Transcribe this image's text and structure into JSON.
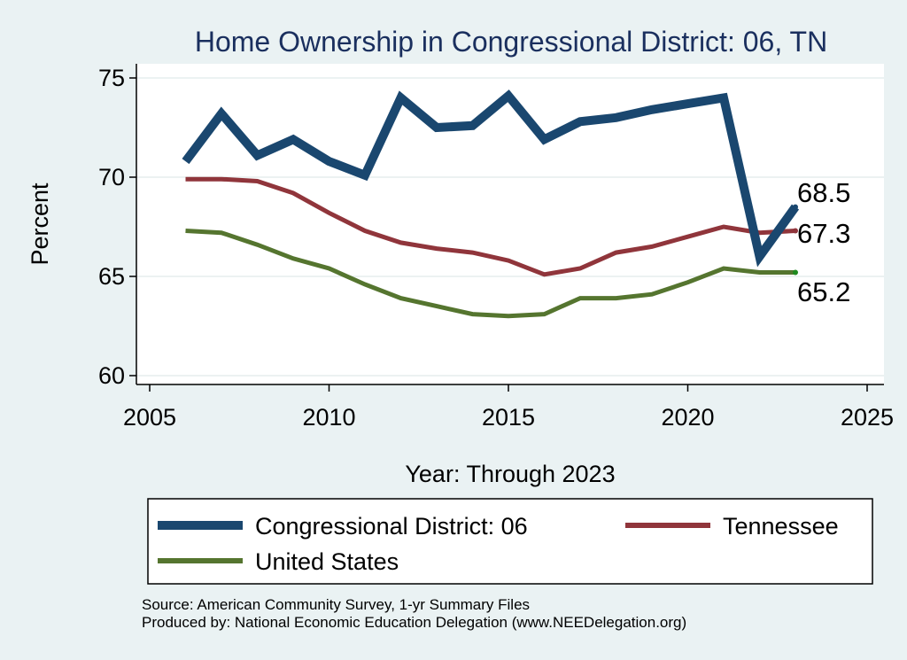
{
  "chart_data": {
    "type": "line",
    "title": "Home Ownership in Congressional District:  06, TN",
    "xlabel": "Year: Through 2023",
    "ylabel": "Percent",
    "xlim": [
      2005,
      2025
    ],
    "ylim": [
      60,
      75
    ],
    "x_ticks": [
      "2005",
      "2010",
      "2015",
      "2020",
      "2025"
    ],
    "y_ticks": [
      "60",
      "65",
      "70",
      "75"
    ],
    "grid": true,
    "legend_position": "bottom",
    "x": [
      2006,
      2007,
      2008,
      2009,
      2010,
      2011,
      2012,
      2013,
      2014,
      2015,
      2016,
      2017,
      2018,
      2019,
      2020,
      2021,
      2022,
      2023
    ],
    "series": [
      {
        "name": "Congressional District:  06",
        "color": "#1a476f",
        "values": [
          70.8,
          73.2,
          71.1,
          71.9,
          70.8,
          70.1,
          74.0,
          72.5,
          72.6,
          74.1,
          71.9,
          72.8,
          73.0,
          73.4,
          73.7,
          74.0,
          66.0,
          68.5
        ],
        "end_label": "68.5"
      },
      {
        "name": "Tennessee",
        "color": "#90353b",
        "values": [
          69.9,
          69.9,
          69.8,
          69.2,
          68.2,
          67.3,
          66.7,
          66.4,
          66.2,
          65.8,
          65.1,
          65.4,
          66.2,
          66.5,
          67.0,
          67.5,
          67.2,
          67.3
        ],
        "end_label": "67.3"
      },
      {
        "name": "United States",
        "color": "#55752f",
        "values": [
          67.3,
          67.2,
          66.6,
          65.9,
          65.4,
          64.6,
          63.9,
          63.5,
          63.1,
          63.0,
          63.1,
          63.9,
          63.9,
          64.1,
          64.7,
          65.4,
          65.2,
          65.2
        ],
        "end_label": "65.2"
      }
    ]
  },
  "notes": {
    "source": "Source: American Community Survey, 1-yr Summary Files",
    "produced": "Produced by: National Economic Education Delegation (www.NEEDelegation.org)"
  }
}
